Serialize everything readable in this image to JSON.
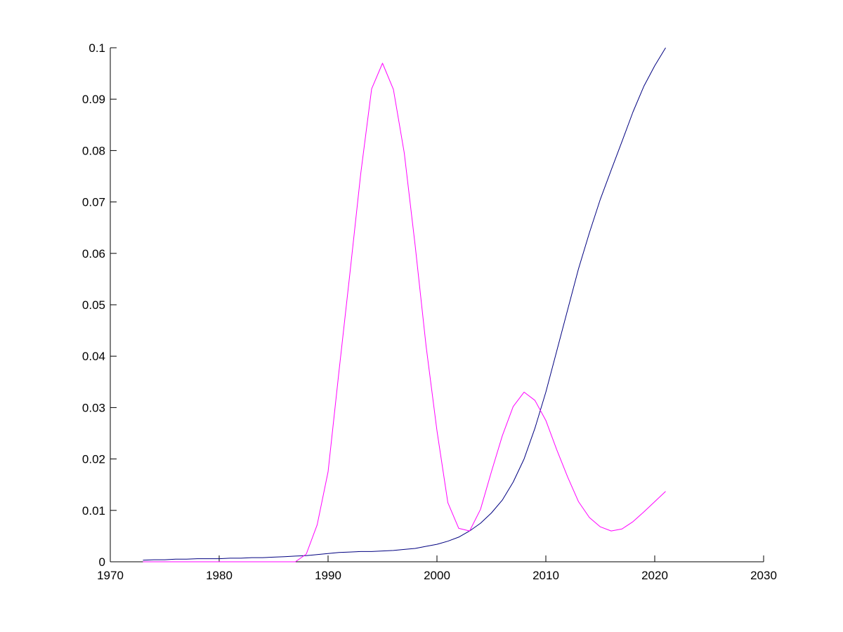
{
  "chart_data": {
    "type": "line",
    "title": "",
    "xlabel": "",
    "ylabel": "",
    "xlim": [
      1970,
      2030
    ],
    "ylim": [
      0,
      0.1
    ],
    "grid": false,
    "box": false,
    "x_ticks": [
      1970,
      1980,
      1990,
      2000,
      2010,
      2020,
      2030
    ],
    "x_tick_labels": [
      "1970",
      "1980",
      "1990",
      "2000",
      "2010",
      "2020",
      "2030"
    ],
    "y_ticks": [
      0,
      0.01,
      0.02,
      0.03,
      0.04,
      0.05,
      0.06,
      0.07,
      0.08,
      0.09,
      0.1
    ],
    "y_tick_labels": [
      "0",
      "0.01",
      "0.02",
      "0.03",
      "0.04",
      "0.05",
      "0.06",
      "0.07",
      "0.08",
      "0.09",
      "0.1"
    ],
    "series": [
      {
        "color": "#000080",
        "points": [
          [
            1973,
            0.0003
          ],
          [
            1974,
            0.0004
          ],
          [
            1975,
            0.0004
          ],
          [
            1976,
            0.0005
          ],
          [
            1977,
            0.0005
          ],
          [
            1978,
            0.0006
          ],
          [
            1979,
            0.0006
          ],
          [
            1980,
            0.0006
          ],
          [
            1981,
            0.0007
          ],
          [
            1982,
            0.0007
          ],
          [
            1983,
            0.0008
          ],
          [
            1984,
            0.0008
          ],
          [
            1985,
            0.0009
          ],
          [
            1986,
            0.001
          ],
          [
            1987,
            0.0011
          ],
          [
            1988,
            0.0012
          ],
          [
            1989,
            0.0014
          ],
          [
            1990,
            0.0016
          ],
          [
            1991,
            0.0018
          ],
          [
            1992,
            0.0019
          ],
          [
            1993,
            0.002
          ],
          [
            1994,
            0.002
          ],
          [
            1995,
            0.0021
          ],
          [
            1996,
            0.0022
          ],
          [
            1997,
            0.0024
          ],
          [
            1998,
            0.0026
          ],
          [
            1999,
            0.003
          ],
          [
            2000,
            0.0034
          ],
          [
            2001,
            0.004
          ],
          [
            2002,
            0.0048
          ],
          [
            2003,
            0.006
          ],
          [
            2004,
            0.0075
          ],
          [
            2005,
            0.0095
          ],
          [
            2006,
            0.012
          ],
          [
            2007,
            0.0155
          ],
          [
            2008,
            0.02
          ],
          [
            2009,
            0.026
          ],
          [
            2010,
            0.033
          ],
          [
            2011,
            0.041
          ],
          [
            2012,
            0.049
          ],
          [
            2013,
            0.057
          ],
          [
            2014,
            0.064
          ],
          [
            2015,
            0.0705
          ],
          [
            2016,
            0.0762
          ],
          [
            2017,
            0.0818
          ],
          [
            2018,
            0.0875
          ],
          [
            2019,
            0.0925
          ],
          [
            2020,
            0.0965
          ],
          [
            2021,
            0.1
          ]
        ]
      },
      {
        "color": "#ff00ff",
        "points": [
          [
            1973,
            0
          ],
          [
            1975,
            0
          ],
          [
            1980,
            0
          ],
          [
            1985,
            0
          ],
          [
            1987,
            0
          ],
          [
            1988,
            0.0015
          ],
          [
            1989,
            0.0072
          ],
          [
            1990,
            0.0175
          ],
          [
            1991,
            0.037
          ],
          [
            1992,
            0.056
          ],
          [
            1993,
            0.0755
          ],
          [
            1994,
            0.092
          ],
          [
            1995,
            0.097
          ],
          [
            1996,
            0.0919
          ],
          [
            1997,
            0.0795
          ],
          [
            1998,
            0.0615
          ],
          [
            1999,
            0.042
          ],
          [
            2000,
            0.0255
          ],
          [
            2001,
            0.0115
          ],
          [
            2002,
            0.0065
          ],
          [
            2003,
            0.006
          ],
          [
            2004,
            0.0102
          ],
          [
            2005,
            0.0175
          ],
          [
            2006,
            0.0245
          ],
          [
            2007,
            0.0302
          ],
          [
            2008,
            0.033
          ],
          [
            2009,
            0.0314
          ],
          [
            2010,
            0.0275
          ],
          [
            2011,
            0.0218
          ],
          [
            2012,
            0.0165
          ],
          [
            2013,
            0.0117
          ],
          [
            2014,
            0.0086
          ],
          [
            2015,
            0.0068
          ],
          [
            2016,
            0.006
          ],
          [
            2017,
            0.0064
          ],
          [
            2018,
            0.0078
          ],
          [
            2019,
            0.0097
          ],
          [
            2020,
            0.0117
          ],
          [
            2021,
            0.0137
          ]
        ]
      }
    ]
  }
}
